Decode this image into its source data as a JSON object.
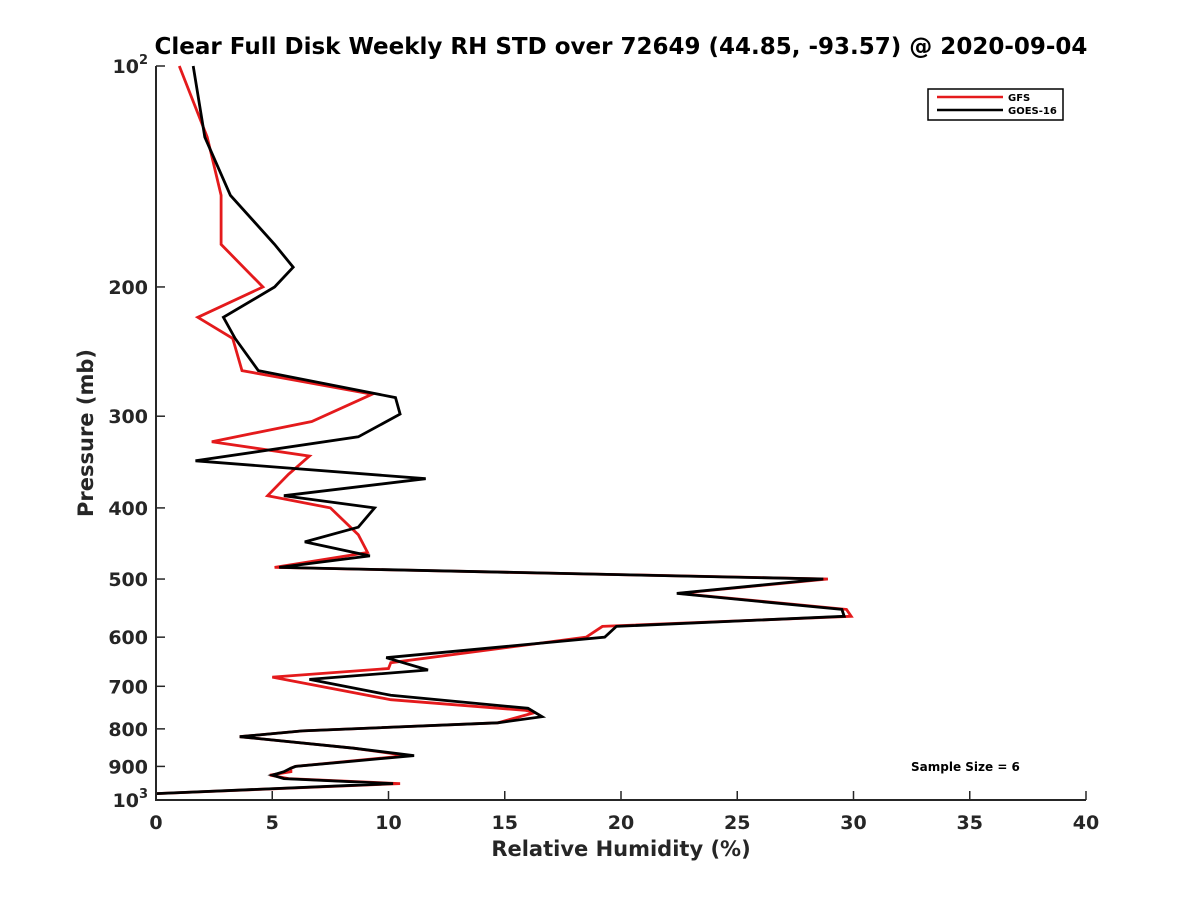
{
  "chart_data": {
    "type": "line",
    "title": "Clear Full Disk Weekly RH STD over 72649 (44.85, -93.57) @ 2020-09-04",
    "xlabel": "Relative Humidity (%)",
    "ylabel": "Pressure (mb)",
    "xlim": [
      0,
      40
    ],
    "ylim": [
      100,
      1000
    ],
    "y_scale": "log",
    "y_reversed": true,
    "x_ticks": [
      "0",
      "5",
      "10",
      "15",
      "20",
      "25",
      "30",
      "35",
      "40"
    ],
    "y_ticks": [
      {
        "value": 100,
        "base": "10",
        "exp": "2"
      },
      {
        "value": 200,
        "label": "200"
      },
      {
        "value": 300,
        "label": "300"
      },
      {
        "value": 400,
        "label": "400"
      },
      {
        "value": 500,
        "label": "500"
      },
      {
        "value": 600,
        "label": "600"
      },
      {
        "value": 700,
        "label": "700"
      },
      {
        "value": 800,
        "label": "800"
      },
      {
        "value": 900,
        "label": "900"
      },
      {
        "value": 1000,
        "base": "10",
        "exp": "3"
      }
    ],
    "grid": false,
    "legend_position": "top-right",
    "annotation": "Sample Size = 6",
    "series": [
      {
        "name": "GFS",
        "color": "#e41a1c",
        "points": [
          [
            1.0,
            100
          ],
          [
            2.2,
            125
          ],
          [
            2.8,
            150
          ],
          [
            2.8,
            175
          ],
          [
            4.6,
            200
          ],
          [
            1.8,
            220
          ],
          [
            3.3,
            235
          ],
          [
            3.7,
            260
          ],
          [
            9.3,
            280
          ],
          [
            6.7,
            305
          ],
          [
            2.4,
            325
          ],
          [
            6.6,
            340
          ],
          [
            5.7,
            360
          ],
          [
            4.8,
            385
          ],
          [
            7.5,
            400
          ],
          [
            8.7,
            435
          ],
          [
            9.1,
            460
          ],
          [
            5.1,
            482
          ],
          [
            28.9,
            500
          ],
          [
            22.5,
            523
          ],
          [
            29.7,
            550
          ],
          [
            29.9,
            562
          ],
          [
            19.2,
            580
          ],
          [
            18.5,
            600
          ],
          [
            10.1,
            650
          ],
          [
            10.0,
            662
          ],
          [
            5.0,
            680
          ],
          [
            10.1,
            730
          ],
          [
            15.9,
            755
          ],
          [
            16.3,
            760
          ],
          [
            14.7,
            785
          ],
          [
            6.3,
            805
          ],
          [
            3.6,
            820
          ],
          [
            8.5,
            850
          ],
          [
            10.8,
            870
          ],
          [
            6.0,
            900
          ],
          [
            5.8,
            905
          ],
          [
            5.8,
            915
          ],
          [
            4.9,
            925
          ],
          [
            5.7,
            935
          ],
          [
            10.5,
            950
          ],
          [
            0,
            980
          ]
        ]
      },
      {
        "name": "GOES-16",
        "color": "#000000",
        "points": [
          [
            1.6,
            100
          ],
          [
            2.1,
            125
          ],
          [
            3.2,
            150
          ],
          [
            5.1,
            175
          ],
          [
            5.9,
            188
          ],
          [
            5.1,
            200
          ],
          [
            2.9,
            220
          ],
          [
            3.4,
            235
          ],
          [
            4.4,
            260
          ],
          [
            10.3,
            283
          ],
          [
            10.5,
            298
          ],
          [
            8.7,
            320
          ],
          [
            1.7,
            345
          ],
          [
            11.6,
            365
          ],
          [
            5.5,
            385
          ],
          [
            9.4,
            400
          ],
          [
            8.7,
            425
          ],
          [
            6.4,
            445
          ],
          [
            9.2,
            465
          ],
          [
            5.3,
            482
          ],
          [
            28.7,
            500
          ],
          [
            22.4,
            523
          ],
          [
            29.5,
            550
          ],
          [
            29.6,
            562
          ],
          [
            19.8,
            580
          ],
          [
            19.3,
            600
          ],
          [
            9.9,
            640
          ],
          [
            11.7,
            665
          ],
          [
            6.6,
            685
          ],
          [
            10.1,
            720
          ],
          [
            16.0,
            750
          ],
          [
            16.6,
            770
          ],
          [
            14.7,
            785
          ],
          [
            6.3,
            805
          ],
          [
            3.6,
            820
          ],
          [
            8.5,
            850
          ],
          [
            11.1,
            870
          ],
          [
            6.0,
            900
          ],
          [
            5.8,
            905
          ],
          [
            5.5,
            915
          ],
          [
            5.0,
            925
          ],
          [
            5.5,
            935
          ],
          [
            10.2,
            950
          ],
          [
            0,
            980
          ]
        ]
      }
    ]
  }
}
